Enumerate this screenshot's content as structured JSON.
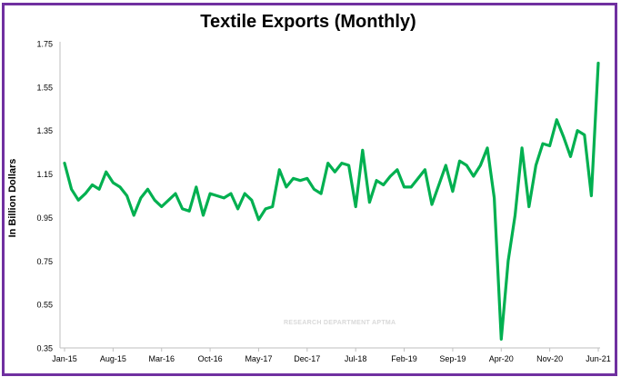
{
  "chart_data": {
    "type": "line",
    "title": "Textile Exports (Monthly)",
    "ylabel": "In Billion Dollars",
    "xlabel": "",
    "ylim": [
      0.35,
      1.75
    ],
    "y_ticks": [
      "1.75",
      "1.55",
      "1.35",
      "1.15",
      "0.95",
      "0.75",
      "0.55",
      "0.35"
    ],
    "x_ticks": [
      "Jan-15",
      "Aug-15",
      "Mar-16",
      "Oct-16",
      "May-17",
      "Dec-17",
      "Jul-18",
      "Feb-19",
      "Sep-19",
      "Apr-20",
      "Nov-20",
      "Jun-21"
    ],
    "watermark": "RESEARCH DEPARTMENT APTMA",
    "grid": false,
    "line_color": "#00b050",
    "series": [
      {
        "values": [
          1.2,
          1.08,
          1.03,
          1.06,
          1.1,
          1.08,
          1.16,
          1.11,
          1.09,
          1.05,
          0.96,
          1.04,
          1.08,
          1.03,
          1.0,
          1.03,
          1.06,
          0.99,
          0.98,
          1.09,
          0.96,
          1.06,
          1.05,
          1.04,
          1.06,
          0.99,
          1.06,
          1.03,
          0.94,
          0.99,
          1.0,
          1.17,
          1.09,
          1.13,
          1.12,
          1.13,
          1.08,
          1.06,
          1.2,
          1.16,
          1.2,
          1.19,
          1.0,
          1.26,
          1.02,
          1.12,
          1.1,
          1.14,
          1.17,
          1.09,
          1.09,
          1.13,
          1.17,
          1.01,
          1.1,
          1.19,
          1.07,
          1.21,
          1.19,
          1.14,
          1.19,
          1.27,
          1.04,
          0.39,
          0.75,
          0.96,
          1.27,
          1.0,
          1.19,
          1.29,
          1.28,
          1.4,
          1.32,
          1.23,
          1.35,
          1.33,
          1.05,
          1.66
        ]
      }
    ]
  }
}
